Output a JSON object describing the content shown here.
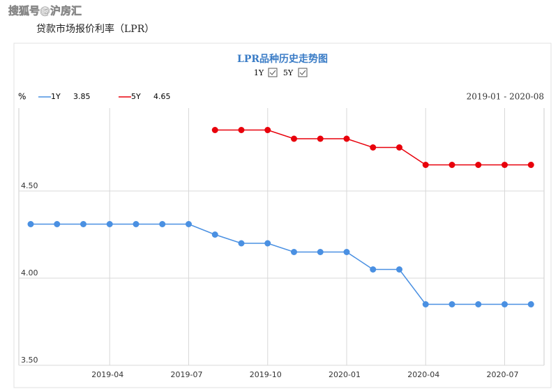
{
  "header": {
    "watermark": "搜狐号@沪房汇",
    "subtitle": "贷款市场报价利率（LPR）"
  },
  "chart_data": {
    "type": "line",
    "title": "LPR品种历史走势图",
    "unit": "%",
    "range": "2019-01 - 2020-08",
    "categories": [
      null,
      null,
      null,
      "2019-04",
      null,
      null,
      "2019-07",
      null,
      null,
      "2019-10",
      null,
      null,
      "2020-01",
      null,
      null,
      "2020-04",
      null,
      null,
      "2020-07",
      null
    ],
    "series": [
      {
        "name": "1Y",
        "color": "#4a90e2",
        "latest": 3.85,
        "values": [
          4.31,
          4.31,
          4.31,
          4.31,
          4.31,
          4.31,
          4.31,
          4.25,
          4.2,
          4.2,
          4.15,
          4.15,
          4.15,
          4.05,
          4.05,
          3.85,
          3.85,
          3.85,
          3.85,
          3.85
        ]
      },
      {
        "name": "5Y",
        "color": "#e8000b",
        "latest": 4.65,
        "values": [
          null,
          null,
          null,
          null,
          null,
          null,
          null,
          4.85,
          4.85,
          4.85,
          4.8,
          4.8,
          4.8,
          4.75,
          4.75,
          4.65,
          4.65,
          4.65,
          4.65,
          4.65
        ]
      }
    ],
    "ylim": [
      3.5,
      5.0
    ],
    "yticks": [
      {
        "value": 3.5,
        "label": "3.50"
      },
      {
        "value": 4.0,
        "label": "4.00"
      },
      {
        "value": 4.5,
        "label": "4.50"
      }
    ],
    "grid": true
  }
}
